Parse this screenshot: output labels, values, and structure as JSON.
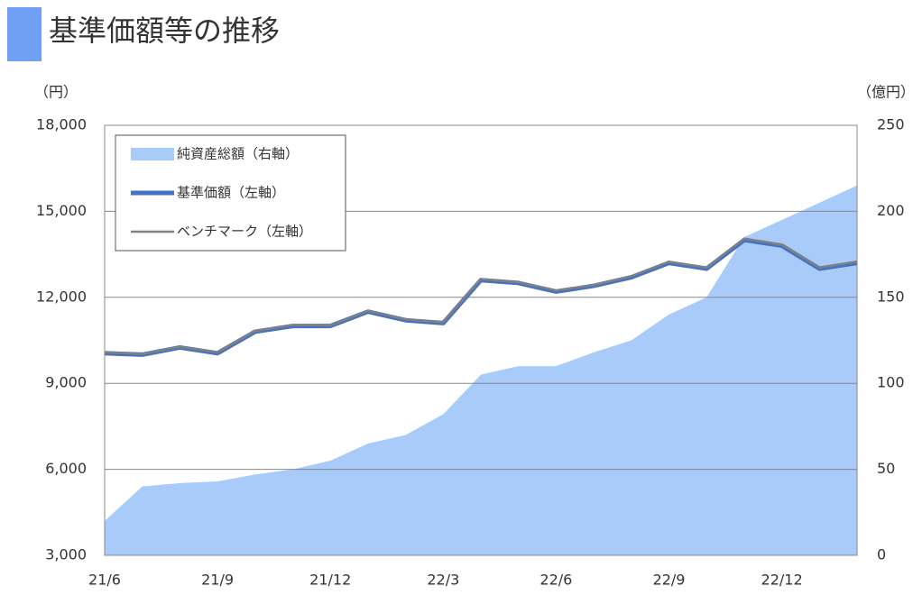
{
  "title": "基準価額等の推移",
  "chart_data": {
    "type": "line",
    "y_unit_label": "（円）",
    "y2_unit_label": "（億円）",
    "categories": [
      "21/6",
      null,
      null,
      "21/9",
      null,
      null,
      "21/12",
      null,
      null,
      "22/3",
      null,
      null,
      "22/6",
      null,
      null,
      "22/9",
      null,
      null,
      "22/12",
      null,
      null
    ],
    "series": [
      {
        "name": "純資産総額（右軸）",
        "type": "area",
        "axis": "y2",
        "color": "#a9cbfa",
        "values": [
          20,
          40,
          42,
          43,
          47,
          50,
          55,
          65,
          70,
          82,
          105,
          110,
          110,
          118,
          125,
          140,
          150,
          185,
          195,
          205,
          215
        ]
      },
      {
        "name": "基準価額（左軸）",
        "type": "line",
        "color": "#4472c4",
        "values": [
          10050,
          10000,
          10250,
          10050,
          10800,
          11000,
          11000,
          11500,
          11200,
          11100,
          12600,
          12500,
          12200,
          12400,
          12700,
          13200,
          13000,
          14000,
          13800,
          13000,
          13200
        ]
      },
      {
        "name": "ベンチマーク（左軸）",
        "type": "line",
        "color": "#808080",
        "values": [
          10080,
          10020,
          10270,
          10080,
          10830,
          11030,
          11020,
          11530,
          11230,
          11130,
          12640,
          12530,
          12240,
          12430,
          12740,
          13240,
          13040,
          14050,
          13840,
          13040,
          13250
        ]
      }
    ],
    "ylim": [
      3000,
      18000
    ],
    "yticks": [
      {
        "value": 3000,
        "label": "3,000"
      },
      {
        "value": 6000,
        "label": "6,000"
      },
      {
        "value": 9000,
        "label": "9,000"
      },
      {
        "value": 12000,
        "label": "12,000"
      },
      {
        "value": 15000,
        "label": "15,000"
      },
      {
        "value": 18000,
        "label": "18,000"
      }
    ],
    "y2lim": [
      0,
      250
    ],
    "y2ticks": [
      0,
      50,
      100,
      150,
      200,
      250
    ],
    "grid": true
  }
}
